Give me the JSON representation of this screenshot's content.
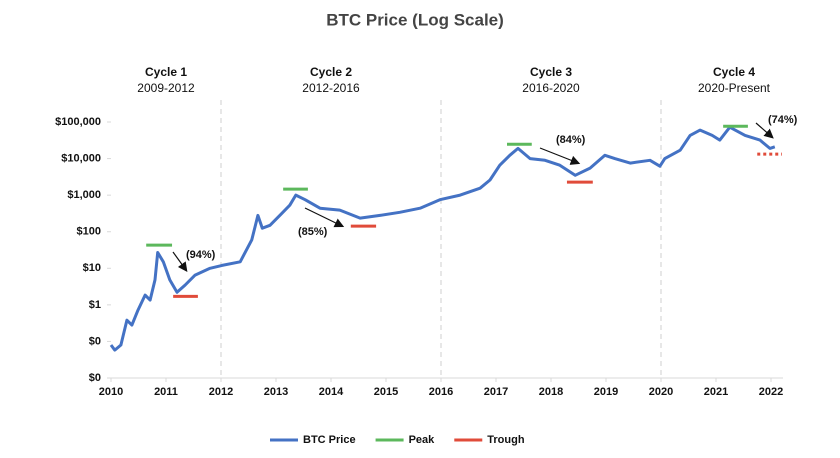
{
  "chart_data": {
    "type": "line",
    "title": "BTC Price (Log Scale)",
    "yscale": "log",
    "xlim": [
      2010,
      2022
    ],
    "xticks": [
      2010,
      2011,
      2012,
      2013,
      2014,
      2015,
      2016,
      2017,
      2018,
      2019,
      2020,
      2021,
      2022
    ],
    "ylim": [
      0.01,
      200000
    ],
    "yticks": [
      {
        "value": 0.01,
        "label": "$0"
      },
      {
        "value": 0.1,
        "label": "$0"
      },
      {
        "value": 1,
        "label": "$1"
      },
      {
        "value": 10,
        "label": "$10"
      },
      {
        "value": 100,
        "label": "$100"
      },
      {
        "value": 1000,
        "label": "$1,000"
      },
      {
        "value": 10000,
        "label": "$10,000"
      },
      {
        "value": 100000,
        "label": "$100,000"
      }
    ],
    "cycle_boundaries": [
      2012,
      2016,
      2020
    ],
    "cycles": [
      {
        "label": "Cycle 1",
        "period": "2009-2012"
      },
      {
        "label": "Cycle 2",
        "period": "2012-2016"
      },
      {
        "label": "Cycle 3",
        "period": "2016-2020"
      },
      {
        "label": "Cycle 4",
        "period": "2020-Present"
      }
    ],
    "annotations": [
      "(94%)",
      "(85%)",
      "(84%)",
      "(74%)"
    ],
    "series": [
      {
        "name": "BTC Price",
        "color": "#4472c4",
        "x": [
          2010.0,
          2010.07,
          2010.18,
          2010.29,
          2010.38,
          2010.49,
          2010.62,
          2010.71,
          2010.8,
          2010.85,
          2010.95,
          2011.07,
          2011.2,
          2011.35,
          2011.53,
          2011.8,
          2012.02,
          2012.35,
          2012.56,
          2012.67,
          2012.75,
          2012.89,
          2013.07,
          2013.25,
          2013.36,
          2013.53,
          2013.8,
          2014.16,
          2014.53,
          2014.89,
          2015.25,
          2015.62,
          2015.98,
          2016.35,
          2016.71,
          2016.89,
          2017.07,
          2017.25,
          2017.4,
          2017.62,
          2017.89,
          2018.16,
          2018.44,
          2018.71,
          2018.98,
          2019.16,
          2019.44,
          2019.8,
          2019.98,
          2020.07,
          2020.35,
          2020.53,
          2020.71,
          2020.93,
          2021.07,
          2021.25,
          2021.53,
          2021.8,
          2021.98,
          2022.07
        ],
        "values": [
          0.08,
          0.058,
          0.08,
          0.38,
          0.28,
          0.72,
          1.85,
          1.35,
          4.8,
          27,
          15,
          4.8,
          2.2,
          3.5,
          6.5,
          10,
          12,
          15,
          60,
          280,
          125,
          150,
          280,
          530,
          1000,
          750,
          440,
          390,
          235,
          280,
          340,
          440,
          750,
          1000,
          1550,
          2600,
          6600,
          12300,
          19000,
          10000,
          9000,
          6600,
          3500,
          5500,
          12300,
          10000,
          7500,
          9000,
          6200,
          10000,
          17000,
          43000,
          60000,
          43000,
          32000,
          72000,
          43000,
          32000,
          19000,
          21000
        ]
      },
      {
        "name": "Peak",
        "color": "#5cb85c",
        "style": [
          "solid",
          "solid",
          "solid",
          "solid"
        ],
        "x": [
          [
            2010.64,
            2011.11
          ],
          [
            2013.13,
            2013.58
          ],
          [
            2017.2,
            2017.65
          ],
          [
            2021.13,
            2021.58
          ]
        ],
        "values": [
          43,
          1460,
          24600,
          76700
        ]
      },
      {
        "name": "Trough",
        "color": "#e04b3a",
        "style": [
          "solid",
          "solid",
          "solid",
          "dotted"
        ],
        "x": [
          [
            2011.13,
            2011.58
          ],
          [
            2014.36,
            2014.82
          ],
          [
            2018.29,
            2018.76
          ],
          [
            2021.75,
            2022.2
          ]
        ],
        "values": [
          1.7,
          142,
          2270,
          13200
        ]
      }
    ]
  }
}
